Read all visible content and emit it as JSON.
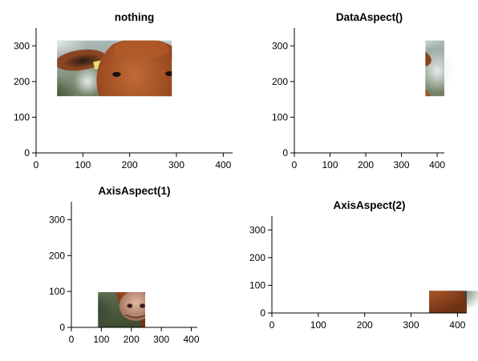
{
  "chart_data": [
    {
      "type": "image",
      "title": "nothing",
      "xlabel": "",
      "ylabel": "",
      "xlim": [
        0,
        420
      ],
      "ylim": [
        0,
        350
      ],
      "xticks": [
        0,
        100,
        200,
        300,
        400
      ],
      "yticks": [
        0,
        100,
        200,
        300
      ],
      "xtick_labels": [
        "0",
        "100",
        "200",
        "300",
        "400"
      ],
      "ytick_labels": [
        "0",
        "100",
        "200",
        "300"
      ],
      "grid": false,
      "image_content": "cow-photo"
    },
    {
      "type": "image",
      "title": "DataAspect()",
      "xlabel": "",
      "ylabel": "",
      "xlim": [
        0,
        420
      ],
      "ylim": [
        0,
        350
      ],
      "xticks": [
        0,
        100,
        200,
        300,
        400
      ],
      "yticks": [
        0,
        100,
        200,
        300
      ],
      "xtick_labels": [
        "0",
        "100",
        "200",
        "300",
        "400"
      ],
      "ytick_labels": [
        "0",
        "100",
        "200",
        "300"
      ],
      "grid": false,
      "image_content": "cow-photo"
    },
    {
      "type": "image",
      "title": "AxisAspect(1)",
      "xlabel": "",
      "ylabel": "",
      "xlim": [
        0,
        420
      ],
      "ylim": [
        0,
        350
      ],
      "xticks": [
        0,
        100,
        200,
        300,
        400
      ],
      "yticks": [
        0,
        100,
        200,
        300
      ],
      "xtick_labels": [
        "0",
        "100",
        "200",
        "300",
        "400"
      ],
      "ytick_labels": [
        "0",
        "100",
        "200",
        "300"
      ],
      "grid": false,
      "image_content": "cow-photo"
    },
    {
      "type": "image",
      "title": "AxisAspect(2)",
      "xlabel": "",
      "ylabel": "",
      "xlim": [
        0,
        420
      ],
      "ylim": [
        0,
        350
      ],
      "xticks": [
        0,
        100,
        200,
        300,
        400
      ],
      "yticks": [
        0,
        100,
        200,
        300
      ],
      "xtick_labels": [
        "0",
        "100",
        "200",
        "300",
        "400"
      ],
      "ytick_labels": [
        "0",
        "100",
        "200",
        "300"
      ],
      "grid": false,
      "image_content": "cow-photo"
    }
  ],
  "colors": {
    "cow_fur": "#a0522d",
    "cow_dark": "#6b3518",
    "ear_tag": "#e8e070",
    "background_green": "#4a5a3a",
    "background_light": "#c8d2d8"
  }
}
